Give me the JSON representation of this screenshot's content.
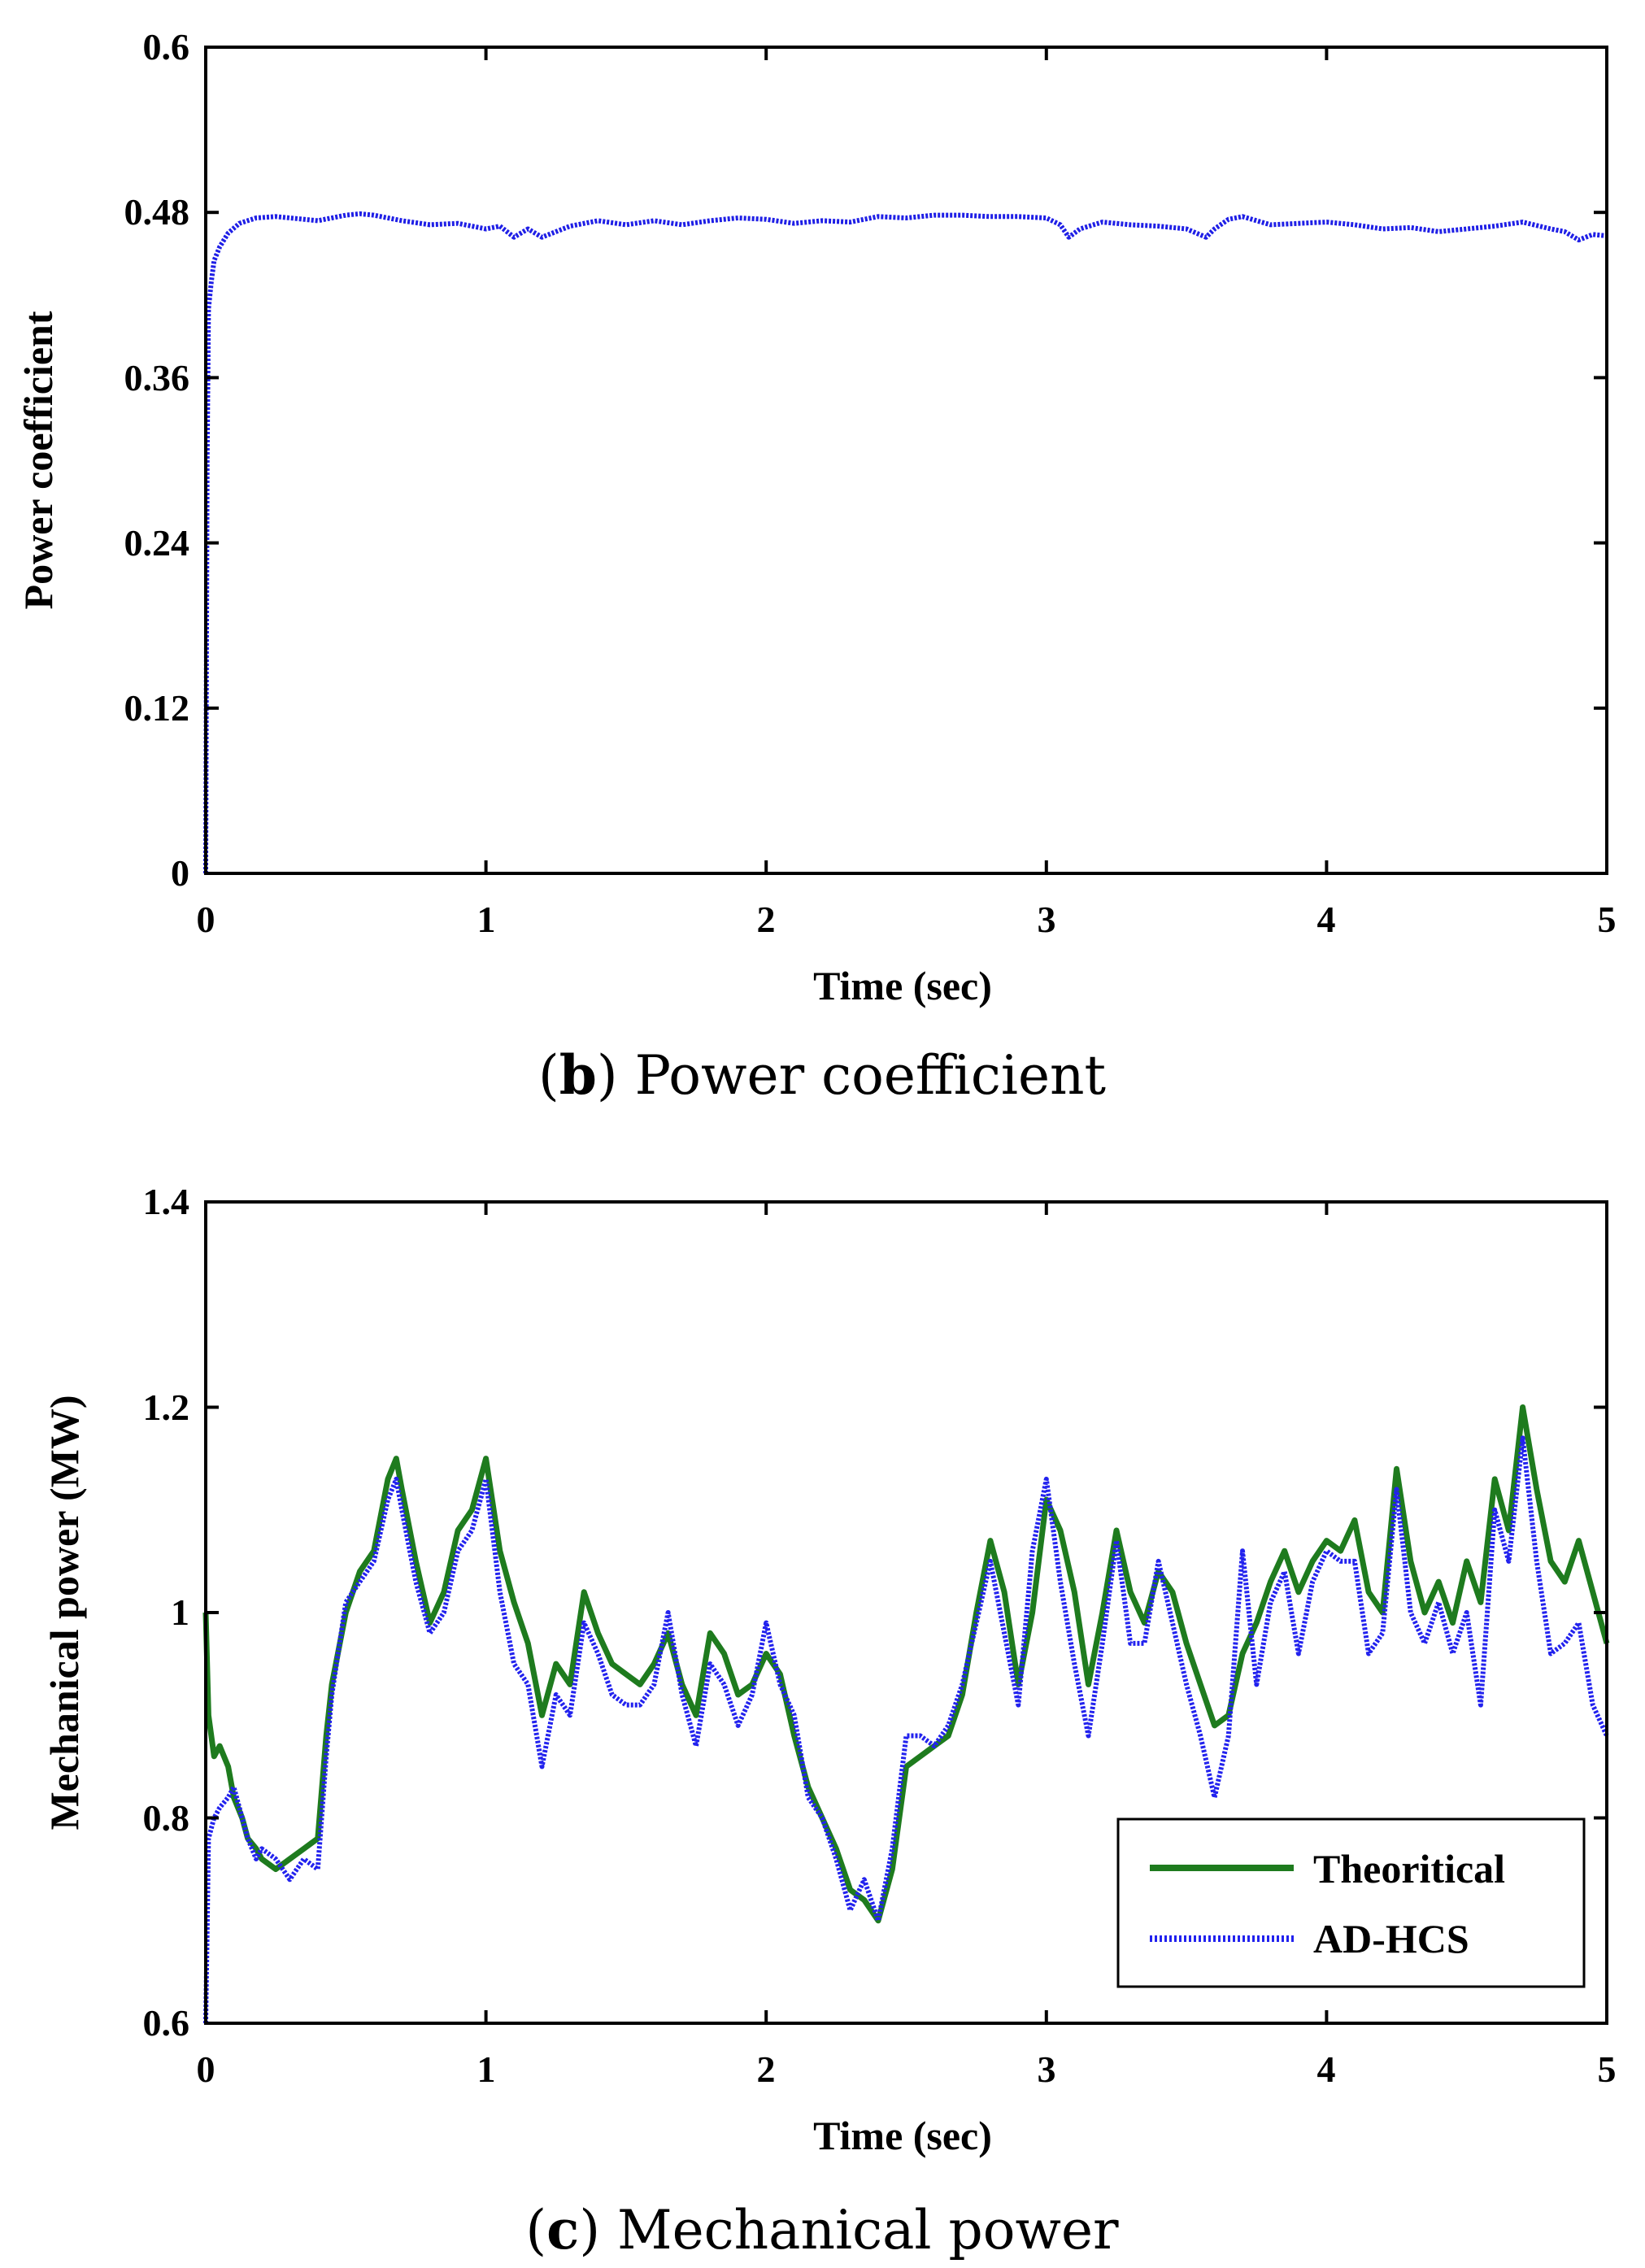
{
  "chart_data": [
    {
      "id": "b",
      "type": "line",
      "caption_letter": "b",
      "caption_text": "Power coefficient",
      "title": "",
      "xlabel": "Time (sec)",
      "ylabel": "Power coefficient",
      "xlim": [
        0,
        5
      ],
      "ylim": [
        0,
        0.6
      ],
      "xticks": [
        0,
        1,
        2,
        3,
        4,
        5
      ],
      "yticks": [
        0,
        0.12,
        0.24,
        0.36,
        0.48,
        0.6
      ],
      "xtick_labels": [
        "0",
        "1",
        "2",
        "3",
        "4",
        "5"
      ],
      "ytick_labels": [
        "0",
        "0.12",
        "0.24",
        "0.36",
        "0.48",
        "0.6"
      ],
      "grid": false,
      "legend": null,
      "series": [
        {
          "name": "Power coefficient",
          "color": "#1f1fe6",
          "dash": "dotted",
          "x": [
            0,
            0.005,
            0.01,
            0.02,
            0.03,
            0.05,
            0.08,
            0.12,
            0.18,
            0.25,
            0.3,
            0.4,
            0.5,
            0.55,
            0.6,
            0.7,
            0.8,
            0.9,
            1.0,
            1.05,
            1.1,
            1.15,
            1.2,
            1.3,
            1.4,
            1.5,
            1.6,
            1.7,
            1.8,
            1.9,
            2.0,
            2.1,
            2.2,
            2.3,
            2.4,
            2.5,
            2.6,
            2.7,
            2.8,
            2.9,
            3.0,
            3.05,
            3.08,
            3.12,
            3.2,
            3.3,
            3.4,
            3.5,
            3.57,
            3.6,
            3.65,
            3.7,
            3.8,
            3.9,
            4.0,
            4.1,
            4.2,
            4.3,
            4.4,
            4.5,
            4.6,
            4.7,
            4.8,
            4.85,
            4.9,
            4.95,
            5.0
          ],
          "y": [
            0.0,
            0.3,
            0.41,
            0.43,
            0.445,
            0.455,
            0.465,
            0.472,
            0.476,
            0.477,
            0.476,
            0.474,
            0.478,
            0.479,
            0.478,
            0.474,
            0.471,
            0.472,
            0.468,
            0.47,
            0.462,
            0.468,
            0.462,
            0.47,
            0.474,
            0.471,
            0.474,
            0.471,
            0.474,
            0.476,
            0.475,
            0.472,
            0.474,
            0.473,
            0.477,
            0.476,
            0.478,
            0.478,
            0.477,
            0.477,
            0.476,
            0.471,
            0.462,
            0.468,
            0.473,
            0.471,
            0.47,
            0.468,
            0.462,
            0.468,
            0.475,
            0.477,
            0.471,
            0.472,
            0.473,
            0.471,
            0.468,
            0.469,
            0.466,
            0.468,
            0.47,
            0.473,
            0.468,
            0.466,
            0.46,
            0.464,
            0.463
          ]
        }
      ]
    },
    {
      "id": "c",
      "type": "line",
      "caption_letter": "c",
      "caption_text": "Mechanical power",
      "title": "",
      "xlabel": "Time (sec)",
      "ylabel": "Mechanical power (MW)",
      "xlim": [
        0,
        5
      ],
      "ylim": [
        0.6,
        1.4
      ],
      "xticks": [
        0,
        1,
        2,
        3,
        4,
        5
      ],
      "yticks": [
        0.6,
        0.8,
        1.0,
        1.2,
        1.4
      ],
      "xtick_labels": [
        "0",
        "1",
        "2",
        "3",
        "4",
        "5"
      ],
      "ytick_labels": [
        "0.6",
        "0.8",
        "1",
        "1.2",
        "1.4"
      ],
      "grid": false,
      "legend": {
        "placement": "bottom-right"
      },
      "series": [
        {
          "name": "Theoritical",
          "color": "#1e7b1e",
          "dash": "solid",
          "x": [
            0,
            0.01,
            0.03,
            0.05,
            0.08,
            0.1,
            0.13,
            0.15,
            0.18,
            0.2,
            0.25,
            0.3,
            0.35,
            0.4,
            0.43,
            0.45,
            0.5,
            0.55,
            0.6,
            0.65,
            0.68,
            0.7,
            0.75,
            0.8,
            0.85,
            0.9,
            0.95,
            1.0,
            1.05,
            1.1,
            1.15,
            1.2,
            1.25,
            1.3,
            1.35,
            1.4,
            1.45,
            1.5,
            1.55,
            1.6,
            1.65,
            1.7,
            1.75,
            1.8,
            1.85,
            1.9,
            1.95,
            2.0,
            2.05,
            2.1,
            2.15,
            2.2,
            2.25,
            2.3,
            2.35,
            2.4,
            2.45,
            2.5,
            2.55,
            2.6,
            2.65,
            2.7,
            2.75,
            2.8,
            2.85,
            2.9,
            2.95,
            3.0,
            3.05,
            3.1,
            3.15,
            3.2,
            3.25,
            3.3,
            3.35,
            3.4,
            3.45,
            3.5,
            3.55,
            3.6,
            3.65,
            3.7,
            3.75,
            3.8,
            3.85,
            3.9,
            3.95,
            4.0,
            4.05,
            4.1,
            4.15,
            4.2,
            4.25,
            4.3,
            4.35,
            4.4,
            4.45,
            4.5,
            4.55,
            4.6,
            4.65,
            4.7,
            4.75,
            4.8,
            4.85,
            4.9,
            4.95,
            5.0
          ],
          "y": [
            1.0,
            0.9,
            0.86,
            0.87,
            0.85,
            0.82,
            0.8,
            0.78,
            0.77,
            0.76,
            0.75,
            0.76,
            0.77,
            0.78,
            0.88,
            0.93,
            1.0,
            1.04,
            1.06,
            1.13,
            1.15,
            1.12,
            1.05,
            0.99,
            1.02,
            1.08,
            1.1,
            1.15,
            1.06,
            1.01,
            0.97,
            0.9,
            0.95,
            0.93,
            1.02,
            0.98,
            0.95,
            0.94,
            0.93,
            0.95,
            0.98,
            0.93,
            0.9,
            0.98,
            0.96,
            0.92,
            0.93,
            0.96,
            0.94,
            0.88,
            0.83,
            0.8,
            0.77,
            0.73,
            0.72,
            0.7,
            0.75,
            0.85,
            0.86,
            0.87,
            0.88,
            0.92,
            1.0,
            1.07,
            1.02,
            0.93,
            1.0,
            1.11,
            1.08,
            1.02,
            0.93,
            1.0,
            1.08,
            1.02,
            0.99,
            1.04,
            1.02,
            0.97,
            0.93,
            0.89,
            0.9,
            0.96,
            0.99,
            1.03,
            1.06,
            1.02,
            1.05,
            1.07,
            1.06,
            1.09,
            1.02,
            1.0,
            1.14,
            1.05,
            1.0,
            1.03,
            0.99,
            1.05,
            1.01,
            1.13,
            1.08,
            1.2,
            1.12,
            1.05,
            1.03,
            1.07,
            1.02,
            0.97
          ]
        },
        {
          "name": "AD-HCS",
          "color": "#2222ee",
          "dash": "dotted",
          "x": [
            0,
            0.01,
            0.03,
            0.05,
            0.08,
            0.1,
            0.13,
            0.15,
            0.18,
            0.2,
            0.25,
            0.3,
            0.35,
            0.4,
            0.43,
            0.45,
            0.5,
            0.55,
            0.6,
            0.65,
            0.68,
            0.7,
            0.75,
            0.8,
            0.85,
            0.9,
            0.95,
            1.0,
            1.05,
            1.1,
            1.15,
            1.2,
            1.25,
            1.3,
            1.35,
            1.4,
            1.45,
            1.5,
            1.55,
            1.6,
            1.65,
            1.7,
            1.75,
            1.8,
            1.85,
            1.9,
            1.95,
            2.0,
            2.05,
            2.1,
            2.15,
            2.2,
            2.25,
            2.3,
            2.35,
            2.4,
            2.45,
            2.5,
            2.55,
            2.6,
            2.65,
            2.7,
            2.75,
            2.8,
            2.85,
            2.9,
            2.95,
            3.0,
            3.05,
            3.1,
            3.15,
            3.2,
            3.25,
            3.3,
            3.35,
            3.4,
            3.45,
            3.5,
            3.55,
            3.6,
            3.65,
            3.7,
            3.75,
            3.8,
            3.85,
            3.9,
            3.95,
            4.0,
            4.05,
            4.1,
            4.15,
            4.2,
            4.25,
            4.3,
            4.35,
            4.4,
            4.45,
            4.5,
            4.55,
            4.6,
            4.65,
            4.7,
            4.75,
            4.8,
            4.85,
            4.9,
            4.95,
            5.0
          ],
          "y": [
            0.6,
            0.78,
            0.8,
            0.81,
            0.82,
            0.83,
            0.8,
            0.78,
            0.76,
            0.77,
            0.76,
            0.74,
            0.76,
            0.75,
            0.86,
            0.92,
            1.01,
            1.03,
            1.05,
            1.11,
            1.13,
            1.1,
            1.03,
            0.98,
            1.0,
            1.06,
            1.08,
            1.13,
            1.02,
            0.95,
            0.93,
            0.85,
            0.92,
            0.9,
            0.99,
            0.96,
            0.92,
            0.91,
            0.91,
            0.93,
            1.0,
            0.92,
            0.87,
            0.95,
            0.93,
            0.89,
            0.92,
            0.99,
            0.93,
            0.9,
            0.82,
            0.8,
            0.76,
            0.71,
            0.74,
            0.7,
            0.77,
            0.88,
            0.88,
            0.87,
            0.89,
            0.93,
            0.99,
            1.05,
            0.98,
            0.91,
            1.06,
            1.13,
            1.03,
            0.95,
            0.88,
            0.97,
            1.07,
            0.97,
            0.97,
            1.05,
            0.99,
            0.93,
            0.88,
            0.82,
            0.88,
            1.06,
            0.93,
            1.01,
            1.04,
            0.96,
            1.03,
            1.06,
            1.05,
            1.05,
            0.96,
            0.98,
            1.12,
            1.0,
            0.97,
            1.01,
            0.96,
            1.0,
            0.91,
            1.1,
            1.05,
            1.17,
            1.05,
            0.96,
            0.97,
            0.99,
            0.91,
            0.88
          ]
        }
      ]
    }
  ]
}
